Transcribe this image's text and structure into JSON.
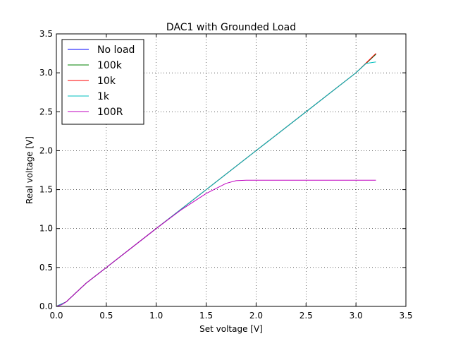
{
  "chart_data": {
    "type": "line",
    "title": "DAC1 with Grounded Load",
    "xlabel": "Set voltage [V]",
    "ylabel": "Real voltage [V]",
    "xlim": [
      0.0,
      3.5
    ],
    "ylim": [
      0.0,
      3.5
    ],
    "xticks": [
      "0.0",
      "0.5",
      "1.0",
      "1.5",
      "2.0",
      "2.5",
      "3.0",
      "3.5"
    ],
    "yticks": [
      "0.0",
      "0.5",
      "1.0",
      "1.5",
      "2.0",
      "2.5",
      "3.0",
      "3.5"
    ],
    "grid": true,
    "legend_position": "top-left",
    "series": [
      {
        "name": "No load",
        "color": "#0000ff",
        "x": [
          0.0,
          0.1,
          0.2,
          0.3,
          0.5,
          1.0,
          1.5,
          2.0,
          2.5,
          3.0,
          3.2
        ],
        "y": [
          0.0,
          0.06,
          0.18,
          0.3,
          0.5,
          1.0,
          1.5,
          2.0,
          2.5,
          3.0,
          3.24
        ]
      },
      {
        "name": "100k",
        "color": "#008000",
        "x": [
          0.0,
          0.1,
          0.2,
          0.3,
          0.5,
          1.0,
          1.5,
          2.0,
          2.5,
          3.0,
          3.2
        ],
        "y": [
          0.0,
          0.06,
          0.18,
          0.3,
          0.5,
          1.0,
          1.5,
          2.0,
          2.5,
          3.0,
          3.24
        ]
      },
      {
        "name": "10k",
        "color": "#ff0000",
        "x": [
          0.0,
          0.1,
          0.2,
          0.3,
          0.5,
          1.0,
          1.5,
          2.0,
          2.5,
          3.0,
          3.2
        ],
        "y": [
          0.0,
          0.06,
          0.18,
          0.3,
          0.5,
          1.0,
          1.5,
          2.0,
          2.5,
          3.0,
          3.25
        ]
      },
      {
        "name": "1k",
        "color": "#00bfbf",
        "x": [
          0.0,
          0.1,
          0.2,
          0.3,
          0.5,
          1.0,
          1.5,
          2.0,
          2.5,
          3.0,
          3.1,
          3.2
        ],
        "y": [
          0.0,
          0.06,
          0.18,
          0.3,
          0.5,
          1.0,
          1.5,
          2.0,
          2.5,
          3.0,
          3.12,
          3.14
        ]
      },
      {
        "name": "100R",
        "color": "#bf00bf",
        "x": [
          0.0,
          0.05,
          0.1,
          0.2,
          0.3,
          0.5,
          0.75,
          1.0,
          1.25,
          1.5,
          1.7,
          1.8,
          1.9,
          2.0,
          2.2,
          2.5,
          2.8,
          3.0,
          3.2
        ],
        "y": [
          0.0,
          0.02,
          0.06,
          0.18,
          0.3,
          0.5,
          0.75,
          1.0,
          1.24,
          1.45,
          1.58,
          1.615,
          1.62,
          1.62,
          1.62,
          1.62,
          1.62,
          1.62,
          1.62
        ]
      }
    ]
  }
}
